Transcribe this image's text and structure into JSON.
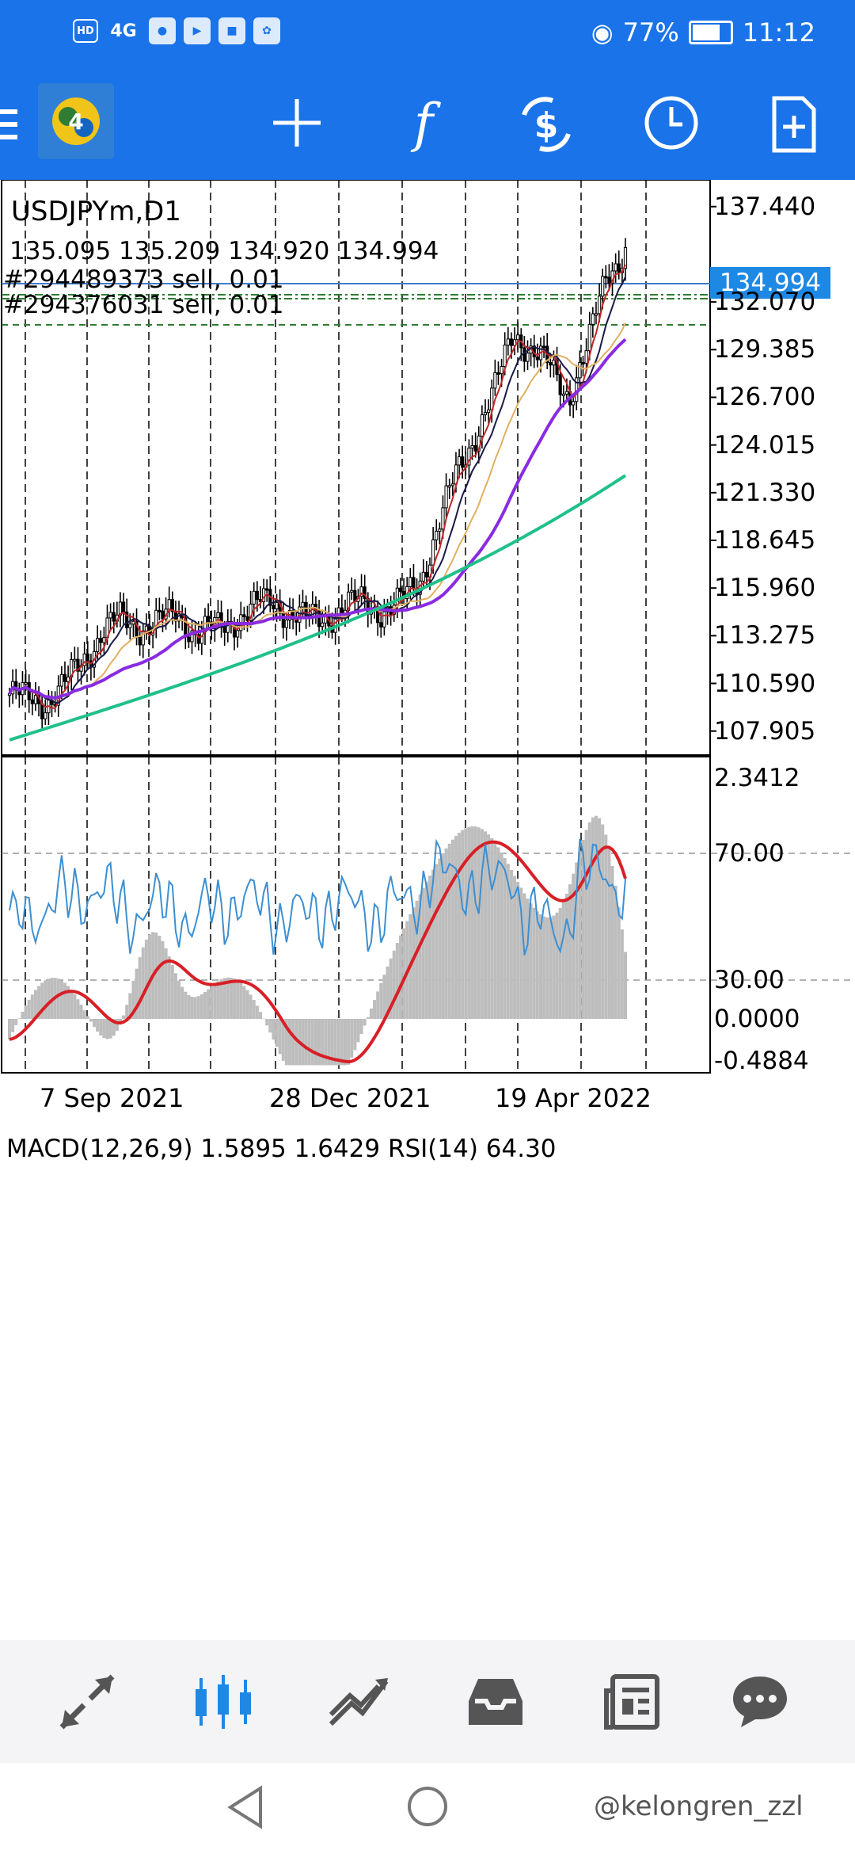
{
  "status_bar": {
    "left_icons": [
      "HD",
      "4G"
    ],
    "battery_percent": "77%",
    "battery_level": 0.77,
    "time": "11:12"
  },
  "toolbar": {
    "icons": [
      "app-logo-icon",
      "crosshair-icon",
      "indicator-f-icon",
      "trade-icon",
      "clock-icon",
      "new-document-icon"
    ]
  },
  "chart": {
    "symbol_period": "USDJPYm,D1",
    "ohlc": "135.095 135.209 134.920 134.994",
    "orders": [
      "#294489373 sell, 0.01",
      "#294376031 sell, 0.01"
    ],
    "current_price_label": "134.994",
    "price_axis": [
      "137.440",
      "132.070",
      "129.385",
      "126.700",
      "124.015",
      "121.330",
      "118.645",
      "115.960",
      "113.275",
      "110.590",
      "107.905"
    ],
    "indicator_header": "MACD(12,26,9) 1.5895 1.6429 RSI(14) 64.30",
    "indicator_axis": [
      "2.3412",
      "70.00",
      "30.00",
      "0.0000",
      "-0.4884"
    ],
    "date_labels": [
      "7 Sep 2021",
      "28 Dec 2021",
      "19 Apr 2022"
    ]
  },
  "chart_data": {
    "type": "line",
    "title": "USDJPYm,D1",
    "series": [
      {
        "name": "USDJPYm,D1",
        "values": [
          110.0,
          109.7,
          109.6,
          110.5,
          112.0,
          113.6,
          114.2,
          113.8,
          114.0,
          114.6,
          113.4,
          113.6,
          114.2,
          114.8,
          115.3,
          114.6,
          114.1,
          114.4,
          114.9,
          115.2,
          114.7,
          115.1,
          116.5,
          119.5,
          122.5,
          124.8,
          127.0,
          130.6,
          129.2,
          128.3,
          126.9,
          129.5,
          133.8,
          134.99
        ]
      }
    ],
    "ylim": [
      107.0,
      138.5
    ]
  },
  "bottom_nav": {
    "items": [
      "quotes-icon",
      "chart-icon",
      "trade-icon",
      "history-icon",
      "news-icon",
      "chat-icon"
    ],
    "active_index": 1
  },
  "watermark": "@kelongren_zzl",
  "colors": {
    "header_blue": "#1a73e8",
    "current_price_tag": "#1e88e5",
    "ma_purple": "#8a2be2",
    "ma_green": "#20c08a",
    "ma_red": "#c0282a",
    "rsi_blue": "#3d8fd1",
    "macd_hist": "#bdbdbd",
    "macd_signal": "#d81f26"
  }
}
